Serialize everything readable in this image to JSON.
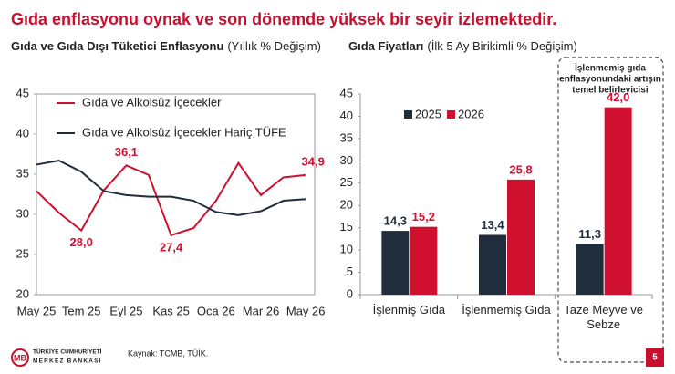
{
  "title": "Gıda enflasyonu oynak ve son dönemde yüksek bir seyir izlemektedir.",
  "source": "Kaynak: TCMB, TÜİK.",
  "logo": [
    "TÜRKİYE CUMHURİYETİ",
    "MERKEZ BANKASI"
  ],
  "page_number": "5",
  "chart_data": [
    {
      "type": "line",
      "title": "Gıda ve Gıda Dışı Tüketici Enflasyonu",
      "subtitle": "(Yıllık % Değişim)",
      "categories": [
        "May 25",
        null,
        "Tem 25",
        null,
        "Eyl 25",
        null,
        "Kas 25",
        null,
        "Oca 26",
        null,
        "Mar 26",
        null,
        "May 26"
      ],
      "series": [
        {
          "name": "Gıda ve Alkolsüz İçecekler",
          "color": "#d0102f",
          "values": [
            32.9,
            30.2,
            28.0,
            33.0,
            36.1,
            34.9,
            27.4,
            28.3,
            31.7,
            36.4,
            32.4,
            34.6,
            34.9
          ],
          "value_labels": [
            null,
            null,
            "28,0",
            null,
            "36,1",
            null,
            "27,4",
            null,
            null,
            null,
            null,
            null,
            "34,9"
          ]
        },
        {
          "name": "Gıda ve Alkolsüz İçecekler Hariç TÜFE",
          "color": "#1f2d3d",
          "values": [
            36.2,
            36.7,
            35.3,
            32.9,
            32.4,
            32.2,
            32.2,
            31.7,
            30.3,
            29.9,
            30.4,
            31.7,
            31.9
          ]
        }
      ],
      "ylim": [
        20,
        45
      ],
      "yticks": [
        20,
        25,
        30,
        35,
        40,
        45
      ],
      "grid": false
    },
    {
      "type": "bar",
      "title": "Gıda Fiyatları",
      "subtitle": "(İlk 5 Ay Birikimli % Değişim)",
      "categories": [
        "İşlenmiş Gıda",
        "İşlenmemiş Gıda",
        "Taze Meyve ve Sebze"
      ],
      "series": [
        {
          "name": "2025",
          "color": "#1f2d3d",
          "values": [
            14.3,
            13.4,
            11.3
          ],
          "value_labels": [
            "14,3",
            "13,4",
            "11,3"
          ]
        },
        {
          "name": "2026",
          "color": "#d0102f",
          "values": [
            15.2,
            25.8,
            42.0
          ],
          "value_labels": [
            "15,2",
            "25,8",
            "42,0"
          ]
        }
      ],
      "annotation": [
        "İşlenmemiş gıda",
        "enflasyonundaki artışın",
        "temel belirleyicisi"
      ],
      "ylim": [
        0,
        45
      ],
      "yticks": [
        0,
        5,
        10,
        15,
        20,
        25,
        30,
        35,
        40,
        45
      ],
      "grid": false
    }
  ]
}
